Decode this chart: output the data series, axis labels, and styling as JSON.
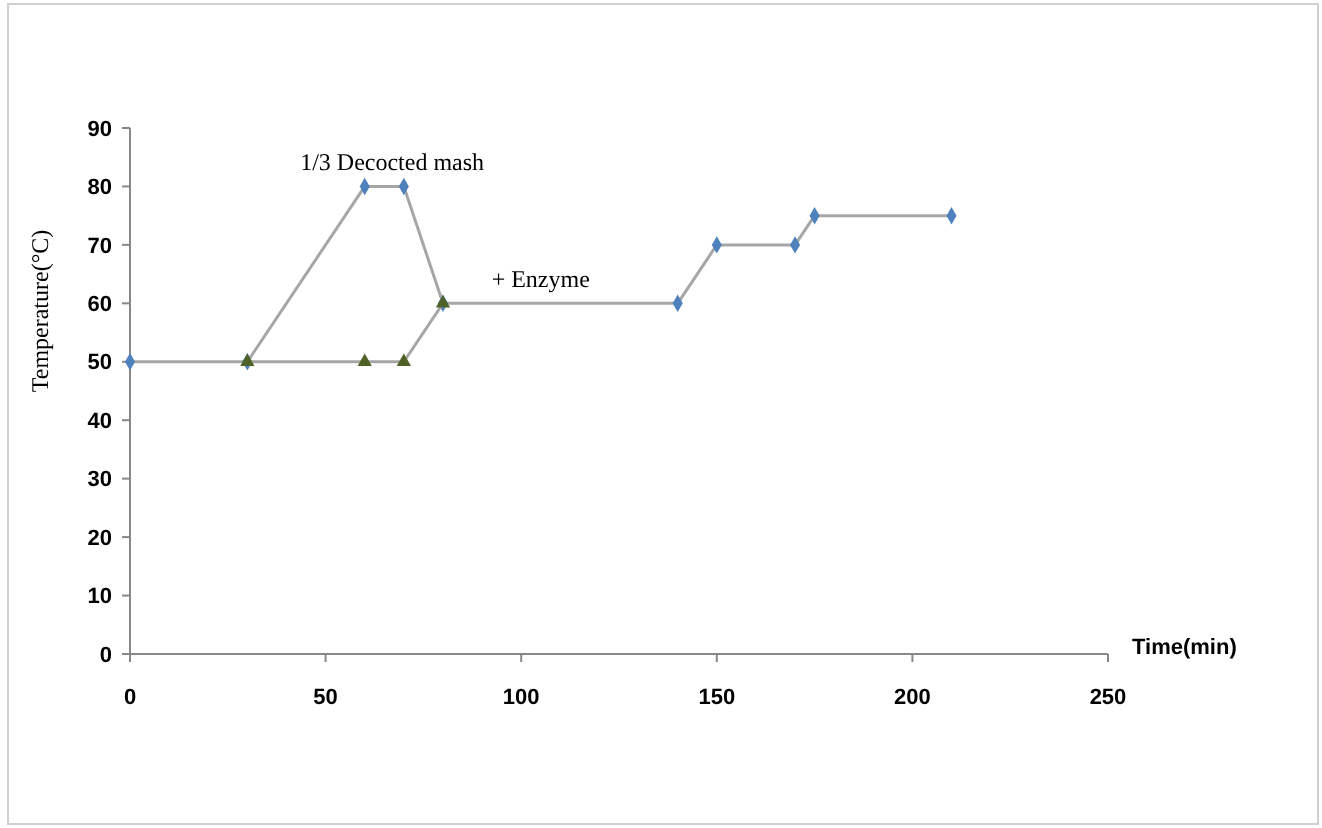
{
  "chart_data": {
    "type": "line",
    "xlabel": "Time(min)",
    "ylabel": "Temperature(°C)",
    "xlim": [
      0,
      250
    ],
    "xticks": [
      0,
      50,
      100,
      150,
      200,
      250
    ],
    "ylim": [
      0,
      90
    ],
    "yticks": [
      0,
      10,
      20,
      30,
      40,
      50,
      60,
      70,
      80,
      90
    ],
    "grid": false,
    "series": [
      {
        "color": "#4f81bd",
        "marker": "diamond",
        "x": [
          0,
          30,
          60,
          70,
          80,
          140,
          150,
          170,
          175,
          210
        ],
        "values": [
          50,
          50,
          80,
          80,
          60,
          60,
          70,
          70,
          75,
          75
        ]
      },
      {
        "color": "#4f6228",
        "marker": "triangle",
        "x": [
          30,
          60,
          70,
          80
        ],
        "values": [
          50,
          50,
          50,
          60
        ]
      }
    ],
    "annotations": [
      {
        "text": "1/3 Decocted mash",
        "x": 67,
        "y": 80
      },
      {
        "text": "+ Enzyme",
        "x": 105,
        "y": 60
      }
    ]
  }
}
